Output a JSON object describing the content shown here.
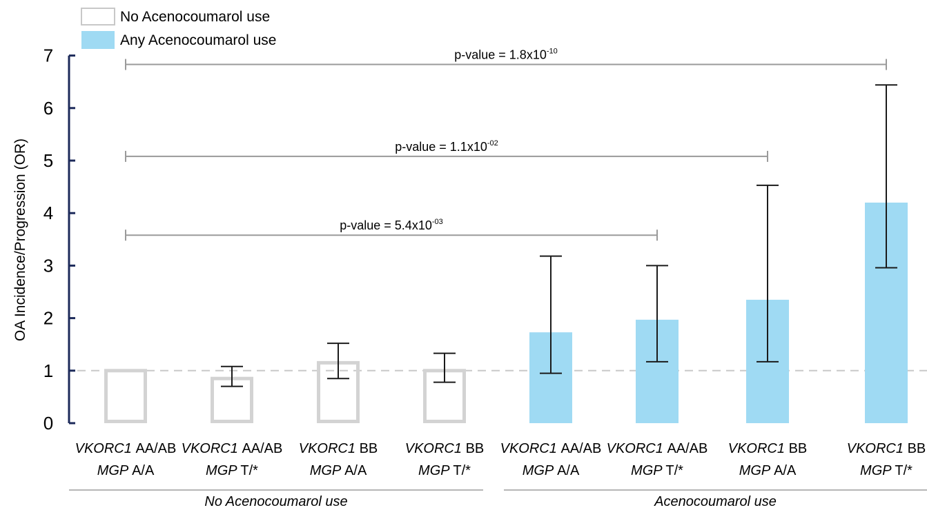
{
  "legend": [
    {
      "label": "No Acenocoumarol use",
      "fill": "#ffffff",
      "stroke": "#c8c8c8"
    },
    {
      "label": "Any Acenocoumarol use",
      "fill": "#9fdaf3",
      "stroke": "#9fdaf3"
    }
  ],
  "colors": {
    "no_use_stroke": "#d3d3d3",
    "any_use_fill": "#9fdaf3",
    "axis": "#1c2a5a",
    "error_bar": "#1a1a1a",
    "bracket": "#9a9a9a",
    "reference_line": "#c8c8c8"
  },
  "chart_data": {
    "type": "bar",
    "ylabel": "OA Incidence/Progression (OR)",
    "ylim": [
      0,
      7
    ],
    "yticks": [
      0,
      1,
      2,
      3,
      4,
      5,
      6,
      7
    ],
    "reference_line": 1,
    "categories": [
      {
        "gene1": "VKORC1",
        "geno1": "AA/AB",
        "gene2": "MGP",
        "geno2": "A/A"
      },
      {
        "gene1": "VKORC1",
        "geno1": "AA/AB",
        "gene2": "MGP",
        "geno2": "T/*"
      },
      {
        "gene1": "VKORC1",
        "geno1": "BB",
        "gene2": "MGP",
        "geno2": "A/A"
      },
      {
        "gene1": "VKORC1",
        "geno1": "BB",
        "gene2": "MGP",
        "geno2": "T/*"
      },
      {
        "gene1": "VKORC1",
        "geno1": "AA/AB",
        "gene2": "MGP",
        "geno2": "A/A"
      },
      {
        "gene1": "VKORC1",
        "geno1": "AA/AB",
        "gene2": "MGP",
        "geno2": "T/*"
      },
      {
        "gene1": "VKORC1",
        "geno1": "BB",
        "gene2": "MGP",
        "geno2": "A/A"
      },
      {
        "gene1": "VKORC1",
        "geno1": "BB",
        "gene2": "MGP",
        "geno2": "T/*"
      }
    ],
    "series": [
      {
        "name": "No Acenocoumarol use",
        "values": [
          1.0,
          0.85,
          1.15,
          1.0,
          null,
          null,
          null,
          null
        ],
        "ci_low": [
          null,
          0.7,
          0.85,
          0.78,
          null,
          null,
          null,
          null
        ],
        "ci_high": [
          null,
          1.08,
          1.52,
          1.33,
          null,
          null,
          null,
          null
        ]
      },
      {
        "name": "Any Acenocoumarol use",
        "values": [
          null,
          null,
          null,
          null,
          1.73,
          1.97,
          2.35,
          4.2
        ],
        "ci_low": [
          null,
          null,
          null,
          null,
          0.95,
          1.17,
          1.17,
          2.96
        ],
        "ci_high": [
          null,
          null,
          null,
          null,
          3.18,
          3.0,
          4.53,
          6.44
        ]
      }
    ],
    "groups": [
      {
        "label": "No Acenocoumarol use",
        "from": 0,
        "to": 3
      },
      {
        "label": "Acenocoumarol use",
        "from": 4,
        "to": 7
      }
    ],
    "comparisons": [
      {
        "from": 0,
        "to": 5,
        "y": 3.58,
        "text": "p-value = 5.4x10",
        "exponent": "-03"
      },
      {
        "from": 0,
        "to": 6,
        "y": 5.08,
        "text": "p-value = 1.1x10",
        "exponent": "-02"
      },
      {
        "from": 0,
        "to": 7,
        "y": 6.83,
        "text": "p-value = 1.8x10",
        "exponent": "-10"
      }
    ]
  }
}
